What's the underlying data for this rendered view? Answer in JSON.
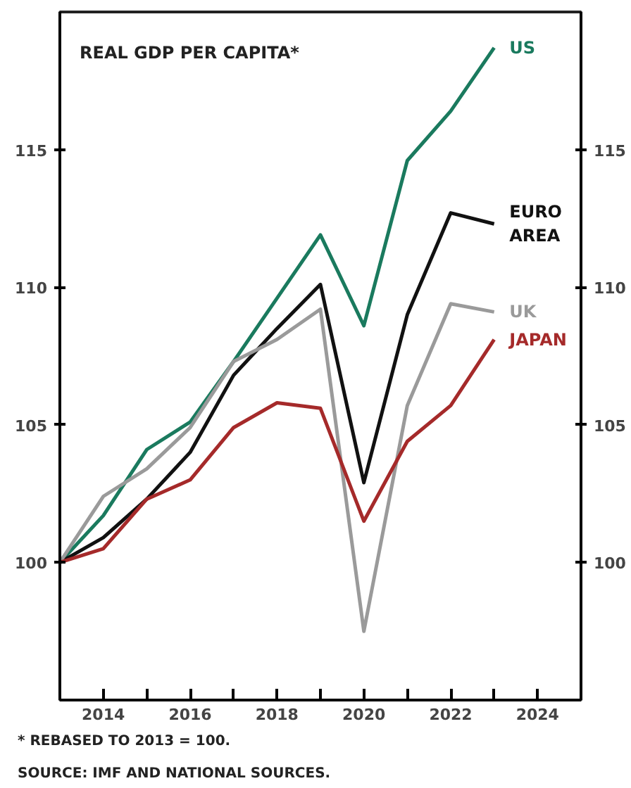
{
  "chart_data": {
    "type": "line",
    "title": "REAL GDP PER CAPITA*",
    "x": [
      2013,
      2014,
      2015,
      2016,
      2017,
      2018,
      2019,
      2020,
      2021,
      2022,
      2023
    ],
    "series": [
      {
        "name": "US",
        "color": "#1a7a5e",
        "values": [
          100,
          101.7,
          104.1,
          105.1,
          107.3,
          109.6,
          111.9,
          108.6,
          114.6,
          116.4,
          118.7
        ]
      },
      {
        "name": "EURO AREA",
        "color": "#111111",
        "values": [
          100,
          100.9,
          102.3,
          104.0,
          106.8,
          108.5,
          110.1,
          102.9,
          109.0,
          112.7,
          112.3
        ]
      },
      {
        "name": "UK",
        "color": "#9a9a9a",
        "values": [
          100,
          102.4,
          103.4,
          104.9,
          107.3,
          108.1,
          109.2,
          97.5,
          105.7,
          109.4,
          109.1
        ]
      },
      {
        "name": "JAPAN",
        "color": "#a52a2a",
        "values": [
          100,
          100.5,
          102.3,
          103.0,
          104.9,
          105.8,
          105.6,
          101.5,
          104.4,
          105.7,
          108.1
        ]
      }
    ],
    "xlim": [
      2013,
      2025
    ],
    "xticks": [
      2014,
      {
        "value": 2015,
        "label": null
      },
      2016,
      {
        "value": 2017,
        "label": null
      },
      2018,
      {
        "value": 2019,
        "label": null
      },
      2020,
      {
        "value": 2021,
        "label": null
      },
      2022,
      {
        "value": 2023,
        "label": null
      },
      2024
    ],
    "ylim": [
      95,
      120
    ],
    "yticks": [
      100,
      105,
      110,
      115
    ],
    "y2lim": [
      95,
      120
    ],
    "y2ticks": [
      100,
      105,
      110,
      115
    ],
    "grid": false,
    "line_style": "solid",
    "annotations": [
      "* REBASED TO 2013 = 100.",
      "SOURCE: IMF AND NATIONAL SOURCES."
    ]
  }
}
